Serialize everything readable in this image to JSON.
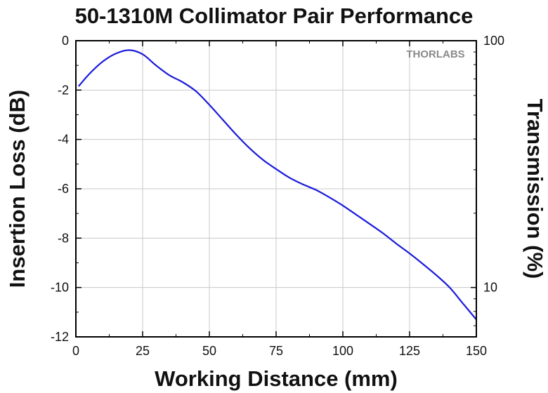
{
  "chart_data": {
    "type": "line",
    "title": "50-1310M Collimator Pair Performance",
    "xlabel": "Working Distance (mm)",
    "ylabel": "Insertion Loss (dB)",
    "y2label": "Transmission (%)",
    "watermark": "THORLABS",
    "xlim": [
      0,
      150
    ],
    "ylim": [
      -12,
      0
    ],
    "y2scale": "log",
    "y2lim": [
      6.31,
      100
    ],
    "xticks": [
      "0",
      "25",
      "50",
      "75",
      "100",
      "125",
      "150"
    ],
    "yticks": [
      "0",
      "-2",
      "-4",
      "-6",
      "-8",
      "-10",
      "-12"
    ],
    "y2ticks": [
      "100",
      "10"
    ],
    "grid": true,
    "series": [
      {
        "color": "#1a1adb",
        "x": [
          1,
          5,
          10,
          15,
          20,
          25,
          30,
          35,
          40,
          45,
          50,
          55,
          60,
          65,
          70,
          75,
          80,
          85,
          90,
          95,
          100,
          105,
          110,
          115,
          120,
          125,
          130,
          135,
          140,
          145,
          150
        ],
        "y": [
          -1.85,
          -1.35,
          -0.85,
          -0.52,
          -0.38,
          -0.55,
          -1.0,
          -1.4,
          -1.68,
          -2.05,
          -2.6,
          -3.2,
          -3.8,
          -4.35,
          -4.82,
          -5.2,
          -5.55,
          -5.82,
          -6.05,
          -6.35,
          -6.68,
          -7.05,
          -7.42,
          -7.8,
          -8.22,
          -8.62,
          -9.05,
          -9.5,
          -10.0,
          -10.65,
          -11.3
        ]
      }
    ]
  }
}
